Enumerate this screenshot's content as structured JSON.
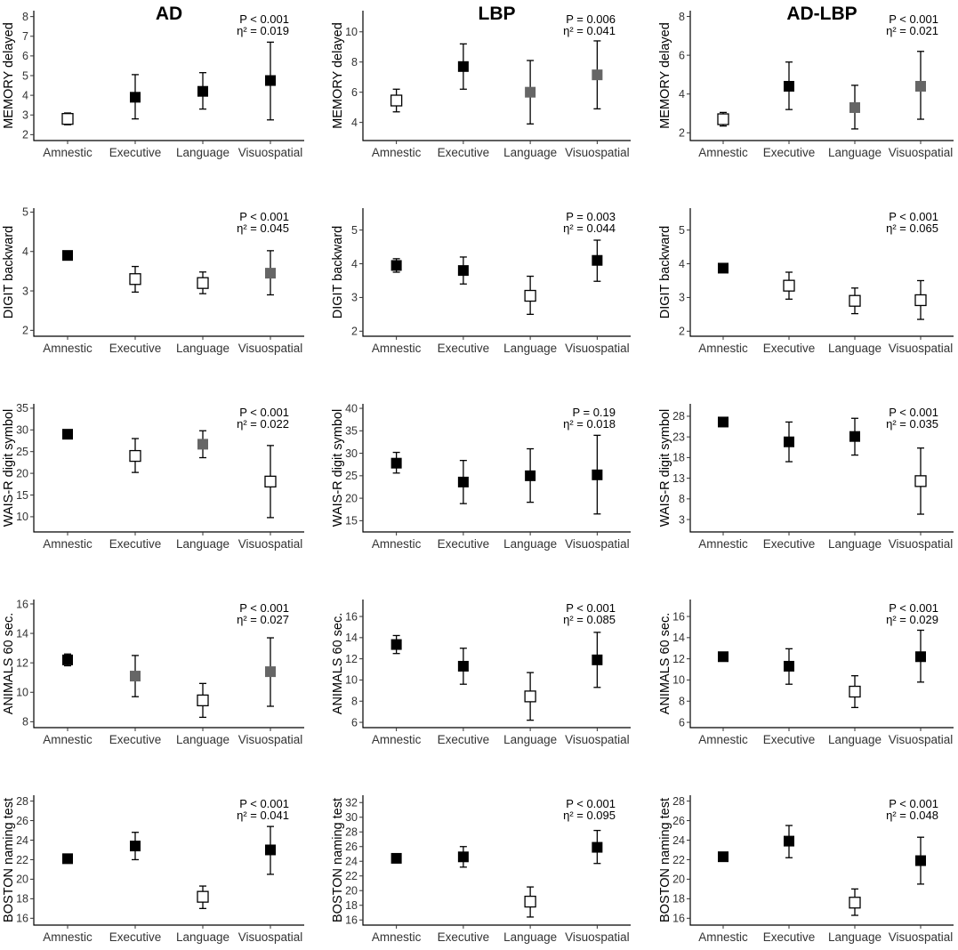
{
  "chart_data": [
    {
      "type": "scatter",
      "title": "AD",
      "ylabel": "MEMORY delayed",
      "ylim": [
        1.7,
        8.3
      ],
      "yticks": [
        2,
        3,
        4,
        5,
        6,
        7,
        8
      ],
      "categories": [
        "Amnestic",
        "Executive",
        "Language",
        "Visuospatial"
      ],
      "stat_p": "P < 0.001",
      "stat_eta": "η² = 0.019",
      "points": [
        {
          "y": 2.8,
          "lo": 2.5,
          "hi": 3.1,
          "fill": "#ffffff"
        },
        {
          "y": 3.9,
          "lo": 2.8,
          "hi": 5.05,
          "fill": "#000000"
        },
        {
          "y": 4.2,
          "lo": 3.3,
          "hi": 5.15,
          "fill": "#000000"
        },
        {
          "y": 4.75,
          "lo": 2.75,
          "hi": 6.7,
          "fill": "#000000"
        }
      ]
    },
    {
      "type": "scatter",
      "title": "LBP",
      "ylabel": "MEMORY delayed",
      "ylim": [
        2.8,
        11.4
      ],
      "yticks": [
        4,
        6,
        8,
        10
      ],
      "categories": [
        "Amnestic",
        "Executive",
        "Language",
        "Visuospatial"
      ],
      "stat_p": "P = 0.006",
      "stat_eta": "η² = 0.041",
      "points": [
        {
          "y": 5.45,
          "lo": 4.7,
          "hi": 6.2,
          "fill": "#ffffff"
        },
        {
          "y": 7.7,
          "lo": 6.2,
          "hi": 9.2,
          "fill": "#000000"
        },
        {
          "y": 6.0,
          "lo": 3.9,
          "hi": 8.1,
          "fill": "#666666"
        },
        {
          "y": 7.15,
          "lo": 4.9,
          "hi": 9.4,
          "fill": "#666666"
        }
      ]
    },
    {
      "type": "scatter",
      "title": "AD-LBP",
      "ylabel": "MEMORY delayed",
      "ylim": [
        1.6,
        8.3
      ],
      "yticks": [
        2,
        4,
        6,
        8
      ],
      "categories": [
        "Amnestic",
        "Executive",
        "Language",
        "Visuospatial"
      ],
      "stat_p": "P < 0.001",
      "stat_eta": "η² = 0.021",
      "points": [
        {
          "y": 2.7,
          "lo": 2.35,
          "hi": 3.05,
          "fill": "#ffffff"
        },
        {
          "y": 4.4,
          "lo": 3.2,
          "hi": 5.65,
          "fill": "#000000"
        },
        {
          "y": 3.3,
          "lo": 2.2,
          "hi": 4.45,
          "fill": "#666666"
        },
        {
          "y": 4.4,
          "lo": 2.7,
          "hi": 6.2,
          "fill": "#666666"
        }
      ]
    },
    {
      "type": "scatter",
      "title": "",
      "ylabel": "DIGIT backward",
      "ylim": [
        1.85,
        5.1
      ],
      "yticks": [
        2,
        3,
        4,
        5
      ],
      "categories": [
        "Amnestic",
        "Executive",
        "Language",
        "Visuospatial"
      ],
      "stat_p": "P < 0.001",
      "stat_eta": "η² = 0.045",
      "points": [
        {
          "y": 3.9,
          "lo": 3.9,
          "hi": 3.9,
          "fill": "#000000"
        },
        {
          "y": 3.3,
          "lo": 2.97,
          "hi": 3.62,
          "fill": "#ffffff"
        },
        {
          "y": 3.2,
          "lo": 2.93,
          "hi": 3.48,
          "fill": "#ffffff"
        },
        {
          "y": 3.45,
          "lo": 2.9,
          "hi": 4.02,
          "fill": "#666666"
        }
      ]
    },
    {
      "type": "scatter",
      "title": "",
      "ylabel": "DIGIT backward",
      "ylim": [
        1.85,
        5.65
      ],
      "yticks": [
        2,
        3,
        4,
        5
      ],
      "categories": [
        "Amnestic",
        "Executive",
        "Language",
        "Visuospatial"
      ],
      "stat_p": "P = 0.003",
      "stat_eta": "η² = 0.044",
      "points": [
        {
          "y": 3.95,
          "lo": 3.75,
          "hi": 4.15,
          "fill": "#000000"
        },
        {
          "y": 3.8,
          "lo": 3.4,
          "hi": 4.2,
          "fill": "#000000"
        },
        {
          "y": 3.05,
          "lo": 2.5,
          "hi": 3.63,
          "fill": "#ffffff"
        },
        {
          "y": 4.1,
          "lo": 3.48,
          "hi": 4.7,
          "fill": "#000000"
        }
      ]
    },
    {
      "type": "scatter",
      "title": "",
      "ylabel": "DIGIT backward",
      "ylim": [
        1.85,
        5.65
      ],
      "yticks": [
        2,
        3,
        4,
        5
      ],
      "categories": [
        "Amnestic",
        "Executive",
        "Language",
        "Visuospatial"
      ],
      "stat_p": "P < 0.001",
      "stat_eta": "η² = 0.065",
      "points": [
        {
          "y": 3.87,
          "lo": 3.87,
          "hi": 3.87,
          "fill": "#000000"
        },
        {
          "y": 3.35,
          "lo": 2.95,
          "hi": 3.75,
          "fill": "#ffffff"
        },
        {
          "y": 2.9,
          "lo": 2.52,
          "hi": 3.28,
          "fill": "#ffffff"
        },
        {
          "y": 2.92,
          "lo": 2.35,
          "hi": 3.5,
          "fill": "#ffffff"
        }
      ]
    },
    {
      "type": "scatter",
      "title": "",
      "ylabel": "WAIS-R digit symbol",
      "ylim": [
        6.5,
        36
      ],
      "yticks": [
        10,
        15,
        20,
        25,
        30,
        35
      ],
      "categories": [
        "Amnestic",
        "Executive",
        "Language",
        "Visuospatial"
      ],
      "stat_p": "P < 0.001",
      "stat_eta": "η² = 0.022",
      "points": [
        {
          "y": 29.0,
          "lo": 28.3,
          "hi": 29.7,
          "fill": "#000000"
        },
        {
          "y": 24.0,
          "lo": 20.2,
          "hi": 28.0,
          "fill": "#ffffff"
        },
        {
          "y": 26.7,
          "lo": 23.6,
          "hi": 29.8,
          "fill": "#666666"
        },
        {
          "y": 18.1,
          "lo": 9.8,
          "hi": 26.4,
          "fill": "#ffffff"
        }
      ]
    },
    {
      "type": "scatter",
      "title": "",
      "ylabel": "WAIS-R digit symbol",
      "ylim": [
        12.5,
        41
      ],
      "yticks": [
        15,
        20,
        25,
        30,
        35,
        40
      ],
      "categories": [
        "Amnestic",
        "Executive",
        "Language",
        "Visuospatial"
      ],
      "stat_p": "P = 0.19",
      "stat_eta": "η² = 0.018",
      "points": [
        {
          "y": 27.8,
          "lo": 25.6,
          "hi": 30.2,
          "fill": "#000000"
        },
        {
          "y": 23.6,
          "lo": 18.8,
          "hi": 28.4,
          "fill": "#000000"
        },
        {
          "y": 25.0,
          "lo": 19.1,
          "hi": 31.0,
          "fill": "#000000"
        },
        {
          "y": 25.2,
          "lo": 16.5,
          "hi": 34.0,
          "fill": "#000000"
        }
      ]
    },
    {
      "type": "scatter",
      "title": "",
      "ylabel": "WAIS-R digit symbol",
      "ylim": [
        0,
        31
      ],
      "yticks": [
        3,
        8,
        13,
        18,
        23,
        28
      ],
      "categories": [
        "Amnestic",
        "Executive",
        "Language",
        "Visuospatial"
      ],
      "stat_p": "P < 0.001",
      "stat_eta": "η² = 0.035",
      "points": [
        {
          "y": 26.6,
          "lo": 25.5,
          "hi": 27.7,
          "fill": "#000000"
        },
        {
          "y": 21.8,
          "lo": 17.0,
          "hi": 26.6,
          "fill": "#000000"
        },
        {
          "y": 23.1,
          "lo": 18.6,
          "hi": 27.5,
          "fill": "#000000"
        },
        {
          "y": 12.3,
          "lo": 4.3,
          "hi": 20.3,
          "fill": "#ffffff"
        }
      ]
    },
    {
      "type": "scatter",
      "title": "",
      "ylabel": "ANIMALS 60 sec.",
      "ylim": [
        7.6,
        16.3
      ],
      "yticks": [
        8,
        10,
        12,
        14,
        16
      ],
      "categories": [
        "Amnestic",
        "Executive",
        "Language",
        "Visuospatial"
      ],
      "stat_p": "P < 0.001",
      "stat_eta": "η² = 0.027",
      "points": [
        {
          "y": 12.2,
          "lo": 11.8,
          "hi": 12.6,
          "fill": "#000000"
        },
        {
          "y": 11.1,
          "lo": 9.7,
          "hi": 12.5,
          "fill": "#666666"
        },
        {
          "y": 9.45,
          "lo": 8.3,
          "hi": 10.6,
          "fill": "#ffffff"
        },
        {
          "y": 11.4,
          "lo": 9.05,
          "hi": 13.7,
          "fill": "#666666"
        }
      ]
    },
    {
      "type": "scatter",
      "title": "",
      "ylabel": "ANIMALS 60 sec.",
      "ylim": [
        5.5,
        17.6
      ],
      "yticks": [
        6,
        8,
        10,
        12,
        14,
        16
      ],
      "categories": [
        "Amnestic",
        "Executive",
        "Language",
        "Visuospatial"
      ],
      "stat_p": "P < 0.001",
      "stat_eta": "η² = 0.085",
      "points": [
        {
          "y": 13.35,
          "lo": 12.5,
          "hi": 14.2,
          "fill": "#000000"
        },
        {
          "y": 11.3,
          "lo": 9.6,
          "hi": 13.0,
          "fill": "#000000"
        },
        {
          "y": 8.45,
          "lo": 6.2,
          "hi": 10.7,
          "fill": "#ffffff"
        },
        {
          "y": 11.9,
          "lo": 9.3,
          "hi": 14.5,
          "fill": "#000000"
        }
      ]
    },
    {
      "type": "scatter",
      "title": "",
      "ylabel": "ANIMALS 60 sec.",
      "ylim": [
        5.5,
        17.6
      ],
      "yticks": [
        6,
        8,
        10,
        12,
        14,
        16
      ],
      "categories": [
        "Amnestic",
        "Executive",
        "Language",
        "Visuospatial"
      ],
      "stat_p": "P < 0.001",
      "stat_eta": "η² = 0.029",
      "points": [
        {
          "y": 12.2,
          "lo": 11.8,
          "hi": 12.55,
          "fill": "#000000"
        },
        {
          "y": 11.3,
          "lo": 9.6,
          "hi": 12.95,
          "fill": "#000000"
        },
        {
          "y": 8.9,
          "lo": 7.4,
          "hi": 10.4,
          "fill": "#ffffff"
        },
        {
          "y": 12.2,
          "lo": 9.8,
          "hi": 14.7,
          "fill": "#000000"
        }
      ]
    },
    {
      "type": "scatter",
      "title": "",
      "ylabel": "BOSTON naming test",
      "ylim": [
        15.3,
        28.6
      ],
      "yticks": [
        16,
        18,
        20,
        22,
        24,
        26,
        28
      ],
      "categories": [
        "Amnestic",
        "Executive",
        "Language",
        "Visuospatial"
      ],
      "stat_p": "P < 0.001",
      "stat_eta": "η² = 0.041",
      "points": [
        {
          "y": 22.1,
          "lo": 21.8,
          "hi": 22.4,
          "fill": "#000000"
        },
        {
          "y": 23.4,
          "lo": 22.0,
          "hi": 24.8,
          "fill": "#000000"
        },
        {
          "y": 18.2,
          "lo": 17.0,
          "hi": 19.3,
          "fill": "#ffffff"
        },
        {
          "y": 23.0,
          "lo": 20.5,
          "hi": 25.4,
          "fill": "#000000"
        }
      ]
    },
    {
      "type": "scatter",
      "title": "",
      "ylabel": "BOSTON naming test",
      "ylim": [
        15.3,
        33
      ],
      "yticks": [
        16,
        18,
        20,
        22,
        24,
        26,
        28,
        30,
        32
      ],
      "categories": [
        "Amnestic",
        "Executive",
        "Language",
        "Visuospatial"
      ],
      "stat_p": "P < 0.001",
      "stat_eta": "η² = 0.095",
      "points": [
        {
          "y": 24.4,
          "lo": 23.8,
          "hi": 25.0,
          "fill": "#000000"
        },
        {
          "y": 24.6,
          "lo": 23.2,
          "hi": 26.0,
          "fill": "#000000"
        },
        {
          "y": 18.5,
          "lo": 16.4,
          "hi": 20.5,
          "fill": "#ffffff"
        },
        {
          "y": 25.9,
          "lo": 23.7,
          "hi": 28.2,
          "fill": "#000000"
        }
      ]
    },
    {
      "type": "scatter",
      "title": "",
      "ylabel": "BOSTON naming test",
      "ylim": [
        15.3,
        28.6
      ],
      "yticks": [
        16,
        18,
        20,
        22,
        24,
        26,
        28
      ],
      "categories": [
        "Amnestic",
        "Executive",
        "Language",
        "Visuospatial"
      ],
      "stat_p": "P < 0.001",
      "stat_eta": "η² = 0.048",
      "points": [
        {
          "y": 22.3,
          "lo": 22.0,
          "hi": 22.6,
          "fill": "#000000"
        },
        {
          "y": 23.9,
          "lo": 22.2,
          "hi": 25.5,
          "fill": "#000000"
        },
        {
          "y": 17.6,
          "lo": 16.3,
          "hi": 19.0,
          "fill": "#ffffff"
        },
        {
          "y": 21.9,
          "lo": 19.5,
          "hi": 24.3,
          "fill": "#000000"
        }
      ]
    }
  ]
}
